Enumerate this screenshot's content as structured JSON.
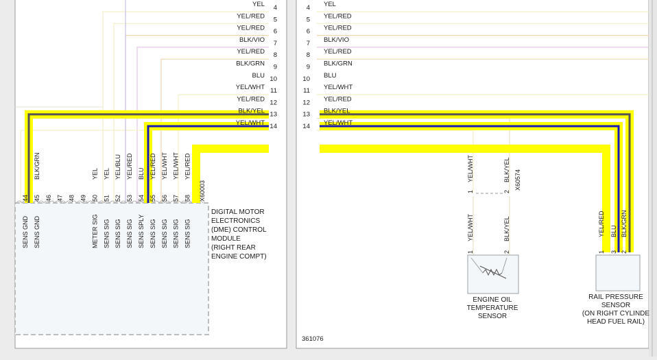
{
  "left_panel": {
    "rows": [
      {
        "pin": "4",
        "wire": "YEL",
        "color": "#f3f0c8",
        "highlight": null
      },
      {
        "pin": "5",
        "wire": "YEL/RED",
        "color": "#f3f0c8",
        "highlight": null
      },
      {
        "pin": "6",
        "wire": "YEL/RED",
        "color": "#efd6ae",
        "highlight": null
      },
      {
        "pin": "7",
        "wire": "BLK/VIO",
        "color": "#e7c7e7",
        "highlight": null
      },
      {
        "pin": "8",
        "wire": "YEL/RED",
        "color": "#efd6ae",
        "highlight": null
      },
      {
        "pin": "9",
        "wire": "BLK/GRN",
        "color": "#555555",
        "highlight": "#ffff00"
      },
      {
        "pin": "10",
        "wire": "BLU",
        "color": "#1a1ab8",
        "highlight": "#ffff00"
      },
      {
        "pin": "11",
        "wire": "YEL/WHT",
        "color": "#f3f0c8",
        "highlight": null
      },
      {
        "pin": "12",
        "wire": "YEL/RED",
        "color": "#ffff00",
        "highlight": "#ffff00"
      },
      {
        "pin": "13",
        "wire": "BLK/YEL",
        "color": "#e8e2c8",
        "highlight": null
      },
      {
        "pin": "14",
        "wire": "YEL/WHT",
        "color": "#f3f0c8",
        "highlight": null
      }
    ],
    "module": {
      "connector": "X60003",
      "lines": [
        "DIGITAL MOTOR",
        "ELECTRONICS",
        "(DME) CONTROL",
        "MODULE",
        "(RIGHT REAR",
        "ENGINE COMPT)"
      ],
      "pins": [
        {
          "num": "44",
          "wire": "",
          "sig": "SENS GND"
        },
        {
          "num": "45",
          "wire": "BLK/GRN",
          "sig": "SENS GND"
        },
        {
          "num": "46",
          "wire": "",
          "sig": ""
        },
        {
          "num": "47",
          "wire": "",
          "sig": ""
        },
        {
          "num": "48",
          "wire": "",
          "sig": ""
        },
        {
          "num": "49",
          "wire": "",
          "sig": ""
        },
        {
          "num": "50",
          "wire": "YEL",
          "sig": "METER SIG"
        },
        {
          "num": "51",
          "wire": "YEL",
          "sig": "SENS SIG"
        },
        {
          "num": "52",
          "wire": "YEL/BLU",
          "sig": "SENS SIG"
        },
        {
          "num": "53",
          "wire": "YEL/RED",
          "sig": "SENS SIG"
        },
        {
          "num": "54",
          "wire": "BLU",
          "sig": "SENS SPLY"
        },
        {
          "num": "55",
          "wire": "YEL/RED",
          "sig": "SENS SIG"
        },
        {
          "num": "56",
          "wire": "YEL/WHT",
          "sig": "SENS SIG"
        },
        {
          "num": "57",
          "wire": "YEL/WHT",
          "sig": "SENS SIG"
        },
        {
          "num": "58",
          "wire": "YEL/RED",
          "sig": "SENS SIG"
        }
      ]
    }
  },
  "right_panel": {
    "rows": [
      {
        "pin": "4",
        "wire": "YEL",
        "color": "#f3f0c8",
        "highlight": null
      },
      {
        "pin": "5",
        "wire": "YEL/RED",
        "color": "#f3f0c8",
        "highlight": null
      },
      {
        "pin": "6",
        "wire": "YEL/RED",
        "color": "#efd6ae",
        "highlight": null
      },
      {
        "pin": "7",
        "wire": "BLK/VIO",
        "color": "#e7c7e7",
        "highlight": null
      },
      {
        "pin": "8",
        "wire": "YEL/RED",
        "color": "#efd6ae",
        "highlight": null
      },
      {
        "pin": "9",
        "wire": "BLK/GRN",
        "color": "#555555",
        "highlight": "#ffff00"
      },
      {
        "pin": "10",
        "wire": "BLU",
        "color": "#1a1ab8",
        "highlight": "#ffff00"
      },
      {
        "pin": "11",
        "wire": "YEL/WHT",
        "color": "#f3f0c8",
        "highlight": null
      },
      {
        "pin": "12",
        "wire": "YEL/RED",
        "color": "#ffff00",
        "highlight": "#ffff00"
      },
      {
        "pin": "13",
        "wire": "BLK/YEL",
        "color": "#e8e2c8",
        "highlight": null
      },
      {
        "pin": "14",
        "wire": "YEL/WHT",
        "color": "#f3f0c8",
        "highlight": null
      }
    ],
    "connector": "X60574",
    "oil_sensor": {
      "lines": [
        "ENGINE OIL",
        "TEMPERATURE",
        "SENSOR"
      ],
      "pins": [
        {
          "num": "1",
          "wire": "YEL/WHT"
        },
        {
          "num": "2",
          "wire": "BLK/YEL"
        }
      ]
    },
    "rail_sensor": {
      "lines": [
        "RAIL PRESSURE",
        "SENSOR",
        "(ON RIGHT CYLINDE",
        "HEAD FUEL RAIL)"
      ],
      "pins": [
        {
          "num": "1",
          "wire": "YEL/RED"
        },
        {
          "num": "3",
          "wire": "BLU"
        },
        {
          "num": "2",
          "wire": "BLK/GRN"
        }
      ]
    },
    "figure_id": "361076"
  }
}
